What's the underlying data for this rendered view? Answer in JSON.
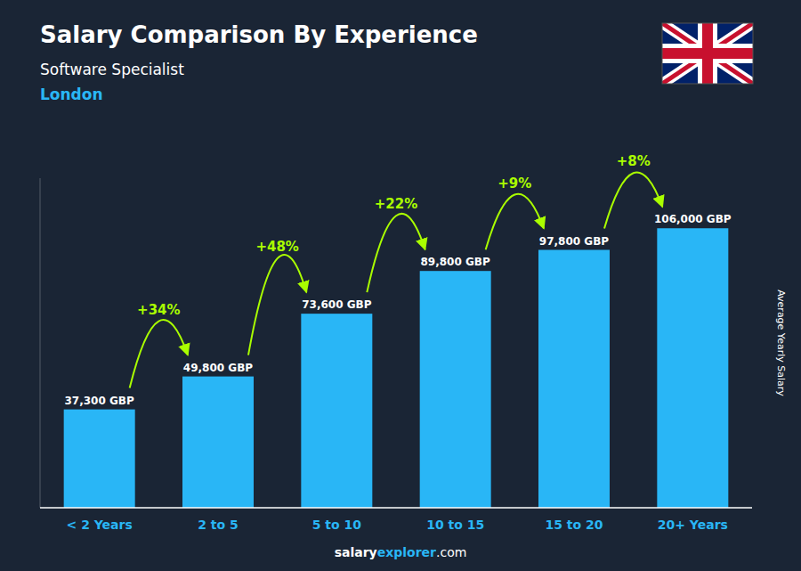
{
  "chart_data": {
    "type": "bar",
    "title": "Salary Comparison By Experience",
    "subtitle": "Software Specialist",
    "location": "London",
    "categories": [
      "< 2 Years",
      "2 to 5",
      "5 to 10",
      "10 to 15",
      "15 to 20",
      "20+ Years"
    ],
    "values": [
      37300,
      49800,
      73600,
      89800,
      97800,
      106000
    ],
    "value_labels": [
      "37,300 GBP",
      "49,800 GBP",
      "73,600 GBP",
      "89,800 GBP",
      "97,800 GBP",
      "106,000 GBP"
    ],
    "data_labels": true,
    "annotations": [
      "+34%",
      "+48%",
      "+22%",
      "+9%",
      "+8%"
    ],
    "ylabel": "Average Yearly Salary",
    "ylim": [
      0,
      125000
    ],
    "color": "#29b6f6",
    "grid": false,
    "tick_labels": "x",
    "footer": [
      "salary",
      "explorer",
      ".com"
    ]
  }
}
